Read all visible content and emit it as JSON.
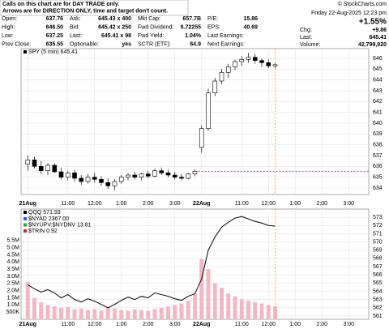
{
  "header": {
    "note": [
      "Calls on this chart are for DAY TRADE only.",
      "Arrows are for DIRECTION ONLY, time and target don't count."
    ],
    "copyright": "© StockCharts.com",
    "rows": [
      [
        [
          "Open:",
          "637.76"
        ],
        [
          "Ask:",
          "645.43 x 400"
        ],
        [
          "Mkt Cap:",
          "657.7B"
        ],
        [
          "P/E:",
          "15.86"
        ]
      ],
      [
        [
          "High:",
          "646.50"
        ],
        [
          "Bid:",
          "645.42 x 250"
        ],
        [
          "Fwd Dividend:",
          "6.72255"
        ],
        [
          "EPS:",
          "40.69"
        ]
      ],
      [
        [
          "Low:",
          "637.25"
        ],
        [
          "Last:",
          "645.41 x 98"
        ],
        [
          "Fwd Yield:",
          "1.04%"
        ],
        [
          "Last Earnings:",
          ""
        ]
      ],
      [
        [
          "Prev Close:",
          "635.55"
        ],
        [
          "Optionable:",
          "yes"
        ],
        [
          "SCTR (ETF):",
          "64.9"
        ],
        [
          "Next Earnings:",
          ""
        ]
      ]
    ],
    "date": "Friday  22-Aug-2025  12:23 pm",
    "change_pct": "+1.55%",
    "quote": [
      [
        "Chg:",
        "+9.86"
      ],
      [
        "Last:",
        "645.41"
      ],
      [
        "Volume:",
        "42,799,920"
      ]
    ]
  },
  "chart_data": [
    {
      "type": "candlestick",
      "legend": "SPY (5 min) 645.41",
      "open": [
        636.2,
        636.6,
        636.0,
        635.6,
        636.1,
        635.5,
        635.0,
        635.4,
        634.9,
        634.6,
        635.0,
        634.8,
        634.5,
        634.2,
        634.6,
        635.0,
        635.2,
        635.0,
        635.3,
        635.1,
        635.6,
        635.4,
        635.2,
        635.0,
        634.9,
        635.3,
        637.76,
        639.5,
        642.8,
        643.9,
        644.7,
        645.2,
        645.7,
        645.9,
        646.1,
        645.8,
        645.6,
        645.3
      ],
      "high": [
        637.0,
        636.9,
        636.5,
        636.3,
        636.3,
        635.9,
        635.6,
        635.7,
        635.2,
        635.3,
        635.4,
        635.1,
        634.9,
        634.8,
        635.2,
        635.4,
        635.5,
        635.4,
        635.6,
        635.8,
        635.9,
        635.7,
        635.5,
        635.3,
        635.4,
        635.7,
        639.8,
        643.2,
        644.2,
        645.0,
        645.5,
        645.9,
        646.2,
        646.5,
        646.4,
        646.0,
        645.9,
        645.6
      ],
      "low": [
        635.6,
        635.8,
        635.3,
        635.2,
        635.4,
        634.8,
        634.7,
        634.6,
        634.3,
        634.4,
        634.5,
        634.2,
        633.9,
        633.8,
        634.4,
        634.7,
        634.8,
        634.7,
        634.9,
        635.0,
        635.2,
        635.0,
        634.8,
        634.7,
        634.8,
        635.1,
        637.25,
        639.3,
        642.5,
        643.6,
        644.2,
        644.9,
        645.3,
        645.6,
        645.5,
        645.2,
        645.1,
        645.0
      ],
      "close": [
        636.6,
        636.0,
        635.6,
        636.1,
        635.5,
        635.0,
        635.4,
        634.9,
        634.6,
        635.0,
        634.8,
        634.5,
        634.2,
        634.6,
        635.0,
        635.2,
        635.0,
        635.3,
        635.1,
        635.6,
        635.4,
        635.2,
        635.0,
        634.9,
        635.3,
        635.55,
        639.5,
        642.8,
        643.9,
        644.7,
        645.2,
        645.7,
        645.9,
        646.1,
        645.8,
        645.6,
        645.3,
        645.41
      ],
      "reference_line": 635.55,
      "xlim": [
        -1,
        51
      ],
      "ylim": [
        633.4,
        646.9
      ],
      "yticks": [
        634,
        635,
        636,
        637,
        638,
        639,
        640,
        641,
        642,
        643,
        644,
        645,
        646
      ],
      "xticks": [
        {
          "value": 0,
          "label": "21Aug"
        },
        {
          "value": 6,
          "label": "11:00"
        },
        {
          "value": 10,
          "label": "12:00"
        },
        {
          "value": 14,
          "label": "1:00"
        },
        {
          "value": 18,
          "label": "2:00"
        },
        {
          "value": 22,
          "label": "3:00"
        },
        {
          "value": 26,
          "label": "22Aug"
        },
        {
          "value": 32,
          "label": "11:00"
        },
        {
          "value": 36,
          "label": "12:00"
        },
        {
          "value": 40,
          "label": "1:00"
        },
        {
          "value": 44,
          "label": "2:00"
        },
        {
          "value": 48,
          "label": "3:00"
        }
      ],
      "grid": true
    },
    {
      "type": "line",
      "overlays": [
        "$NYAD 2367.00",
        "$NYUPV:$NYDNV 13.81",
        "$TRIN 0.92"
      ],
      "series": [
        {
          "name": "QQQ 571.93",
          "color": "#000000",
          "values": [
            564.8,
            564.3,
            563.9,
            564.2,
            563.8,
            563.2,
            563.6,
            563.0,
            562.7,
            563.1,
            562.8,
            562.4,
            562.0,
            562.4,
            562.9,
            563.3,
            563.0,
            563.4,
            563.2,
            563.8,
            563.6,
            563.4,
            563.1,
            562.9,
            563.4,
            563.7,
            565.5,
            569.0,
            570.6,
            571.8,
            572.4,
            572.9,
            573.1,
            572.8,
            572.5,
            572.3,
            572.0,
            571.93
          ]
        },
        {
          "type": "bar",
          "axis": "y2",
          "color": "#f2b8c6",
          "values": [
            2600000,
            1500000,
            1200000,
            1000000,
            900000,
            800000,
            850000,
            700000,
            750000,
            650000,
            700000,
            600000,
            800000,
            750000,
            650000,
            600000,
            700000,
            650000,
            600000,
            700000,
            800000,
            900000,
            1000000,
            1100000,
            1300000,
            1800000,
            4200000,
            3500000,
            2500000,
            2200000,
            1800000,
            1600000,
            1400000,
            1300000,
            1200000,
            1100000,
            1000000,
            900000
          ]
        }
      ],
      "xlim": [
        -1,
        51
      ],
      "ylim": [
        560.6,
        574.0
      ],
      "yticks": [
        561,
        562,
        563,
        564,
        565,
        566,
        567,
        568,
        569,
        570,
        571,
        572,
        573
      ],
      "y2lim": [
        0,
        7700000
      ],
      "y2ticks": [
        {
          "value": 500000,
          "label": "500K"
        },
        {
          "value": 1000000,
          "label": "1.0M"
        },
        {
          "value": 1500000,
          "label": "1.5M"
        },
        {
          "value": 2000000,
          "label": "2.0M"
        },
        {
          "value": 2500000,
          "label": "2.5M"
        },
        {
          "value": 3000000,
          "label": "3.0M"
        },
        {
          "value": 3500000,
          "label": "3.5M"
        },
        {
          "value": 4000000,
          "label": "4.0M"
        },
        {
          "value": 4500000,
          "label": "4.5M"
        },
        {
          "value": 5000000,
          "label": "5.0M"
        },
        {
          "value": 5500000,
          "label": "5.5M"
        }
      ],
      "xticks": [
        {
          "value": 0,
          "label": "21Aug"
        },
        {
          "value": 6,
          "label": "11:00"
        },
        {
          "value": 10,
          "label": "12:00"
        },
        {
          "value": 14,
          "label": "1:00"
        },
        {
          "value": 18,
          "label": "2:00"
        },
        {
          "value": 22,
          "label": "3:00"
        },
        {
          "value": 26,
          "label": "22Aug"
        },
        {
          "value": 32,
          "label": "11:00"
        },
        {
          "value": 36,
          "label": "12:00"
        },
        {
          "value": 40,
          "label": "1:00"
        },
        {
          "value": 44,
          "label": "2:00"
        },
        {
          "value": 48,
          "label": "3:00"
        }
      ],
      "grid": true
    }
  ]
}
